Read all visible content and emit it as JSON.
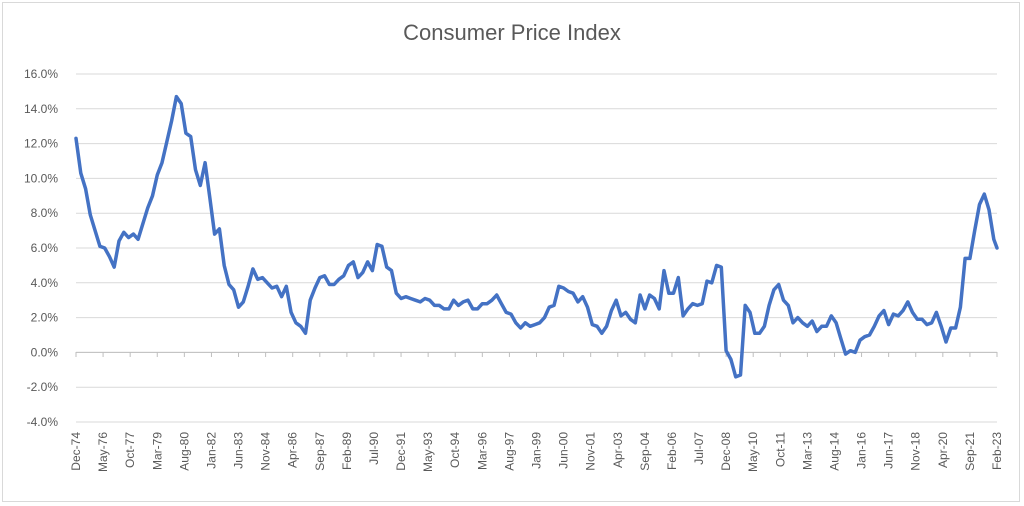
{
  "chart_data": {
    "type": "line",
    "title": "Consumer Price Index",
    "xlabel": "",
    "ylabel": "",
    "ylim": [
      -0.04,
      0.16
    ],
    "y_ticks": [
      -0.04,
      -0.02,
      0.0,
      0.02,
      0.04,
      0.06,
      0.08,
      0.1,
      0.12,
      0.14,
      0.16
    ],
    "y_tick_labels": [
      "-4.0%",
      "-2.0%",
      "0.0%",
      "2.0%",
      "4.0%",
      "6.0%",
      "8.0%",
      "10.0%",
      "12.0%",
      "14.0%",
      "16.0%"
    ],
    "x_range": [
      "1974-12",
      "2023-02"
    ],
    "x_tick_labels": [
      "Dec-74",
      "May-76",
      "Oct-77",
      "Mar-79",
      "Aug-80",
      "Jan-82",
      "Jun-83",
      "Nov-84",
      "Apr-86",
      "Sep-87",
      "Feb-89",
      "Jul-90",
      "Dec-91",
      "May-93",
      "Oct-94",
      "Mar-96",
      "Aug-97",
      "Jan-99",
      "Jun-00",
      "Nov-01",
      "Apr-03",
      "Sep-04",
      "Feb-06",
      "Jul-07",
      "Dec-08",
      "May-10",
      "Oct-11",
      "Mar-13",
      "Aug-14",
      "Jan-16",
      "Jun-17",
      "Nov-18",
      "Apr-20",
      "Sep-21",
      "Feb-23"
    ],
    "grid": true,
    "legend": "none",
    "series": [
      {
        "color": "#4472c4",
        "points": [
          [
            "1974-12",
            0.123
          ],
          [
            "1975-03",
            0.103
          ],
          [
            "1975-06",
            0.094
          ],
          [
            "1975-09",
            0.079
          ],
          [
            "1975-12",
            0.07
          ],
          [
            "1976-03",
            0.061
          ],
          [
            "1976-06",
            0.06
          ],
          [
            "1976-09",
            0.055
          ],
          [
            "1976-12",
            0.049
          ],
          [
            "1977-03",
            0.064
          ],
          [
            "1977-06",
            0.069
          ],
          [
            "1977-09",
            0.066
          ],
          [
            "1977-12",
            0.068
          ],
          [
            "1978-03",
            0.065
          ],
          [
            "1978-06",
            0.074
          ],
          [
            "1978-09",
            0.083
          ],
          [
            "1978-12",
            0.09
          ],
          [
            "1979-03",
            0.102
          ],
          [
            "1979-06",
            0.109
          ],
          [
            "1979-09",
            0.121
          ],
          [
            "1979-12",
            0.133
          ],
          [
            "1980-03",
            0.147
          ],
          [
            "1980-06",
            0.143
          ],
          [
            "1980-09",
            0.126
          ],
          [
            "1980-12",
            0.124
          ],
          [
            "1981-03",
            0.105
          ],
          [
            "1981-06",
            0.096
          ],
          [
            "1981-09",
            0.109
          ],
          [
            "1981-12",
            0.089
          ],
          [
            "1982-03",
            0.068
          ],
          [
            "1982-06",
            0.071
          ],
          [
            "1982-09",
            0.05
          ],
          [
            "1982-12",
            0.039
          ],
          [
            "1983-03",
            0.036
          ],
          [
            "1983-06",
            0.026
          ],
          [
            "1983-09",
            0.029
          ],
          [
            "1983-12",
            0.038
          ],
          [
            "1984-03",
            0.048
          ],
          [
            "1984-06",
            0.042
          ],
          [
            "1984-09",
            0.043
          ],
          [
            "1984-12",
            0.04
          ],
          [
            "1985-03",
            0.037
          ],
          [
            "1985-06",
            0.038
          ],
          [
            "1985-09",
            0.032
          ],
          [
            "1985-12",
            0.038
          ],
          [
            "1986-03",
            0.023
          ],
          [
            "1986-06",
            0.017
          ],
          [
            "1986-09",
            0.015
          ],
          [
            "1986-12",
            0.011
          ],
          [
            "1987-03",
            0.03
          ],
          [
            "1987-06",
            0.037
          ],
          [
            "1987-09",
            0.043
          ],
          [
            "1987-12",
            0.044
          ],
          [
            "1988-03",
            0.039
          ],
          [
            "1988-06",
            0.039
          ],
          [
            "1988-09",
            0.042
          ],
          [
            "1988-12",
            0.044
          ],
          [
            "1989-03",
            0.05
          ],
          [
            "1989-06",
            0.052
          ],
          [
            "1989-09",
            0.043
          ],
          [
            "1989-12",
            0.046
          ],
          [
            "1990-03",
            0.052
          ],
          [
            "1990-06",
            0.047
          ],
          [
            "1990-09",
            0.062
          ],
          [
            "1990-12",
            0.061
          ],
          [
            "1991-03",
            0.049
          ],
          [
            "1991-06",
            0.047
          ],
          [
            "1991-09",
            0.034
          ],
          [
            "1991-12",
            0.031
          ],
          [
            "1992-03",
            0.032
          ],
          [
            "1992-06",
            0.031
          ],
          [
            "1992-09",
            0.03
          ],
          [
            "1992-12",
            0.029
          ],
          [
            "1993-03",
            0.031
          ],
          [
            "1993-06",
            0.03
          ],
          [
            "1993-09",
            0.027
          ],
          [
            "1993-12",
            0.027
          ],
          [
            "1994-03",
            0.025
          ],
          [
            "1994-06",
            0.025
          ],
          [
            "1994-09",
            0.03
          ],
          [
            "1994-12",
            0.027
          ],
          [
            "1995-03",
            0.029
          ],
          [
            "1995-06",
            0.03
          ],
          [
            "1995-09",
            0.025
          ],
          [
            "1995-12",
            0.025
          ],
          [
            "1996-03",
            0.028
          ],
          [
            "1996-06",
            0.028
          ],
          [
            "1996-09",
            0.03
          ],
          [
            "1996-12",
            0.033
          ],
          [
            "1997-03",
            0.028
          ],
          [
            "1997-06",
            0.023
          ],
          [
            "1997-09",
            0.022
          ],
          [
            "1997-12",
            0.017
          ],
          [
            "1998-03",
            0.014
          ],
          [
            "1998-06",
            0.017
          ],
          [
            "1998-09",
            0.015
          ],
          [
            "1998-12",
            0.016
          ],
          [
            "1999-03",
            0.017
          ],
          [
            "1999-06",
            0.02
          ],
          [
            "1999-09",
            0.026
          ],
          [
            "1999-12",
            0.027
          ],
          [
            "2000-03",
            0.038
          ],
          [
            "2000-06",
            0.037
          ],
          [
            "2000-09",
            0.035
          ],
          [
            "2000-12",
            0.034
          ],
          [
            "2001-03",
            0.029
          ],
          [
            "2001-06",
            0.032
          ],
          [
            "2001-09",
            0.026
          ],
          [
            "2001-12",
            0.016
          ],
          [
            "2002-03",
            0.015
          ],
          [
            "2002-06",
            0.011
          ],
          [
            "2002-09",
            0.015
          ],
          [
            "2002-12",
            0.024
          ],
          [
            "2003-03",
            0.03
          ],
          [
            "2003-06",
            0.021
          ],
          [
            "2003-09",
            0.023
          ],
          [
            "2003-12",
            0.019
          ],
          [
            "2004-03",
            0.017
          ],
          [
            "2004-06",
            0.033
          ],
          [
            "2004-09",
            0.025
          ],
          [
            "2004-12",
            0.033
          ],
          [
            "2005-03",
            0.031
          ],
          [
            "2005-06",
            0.025
          ],
          [
            "2005-09",
            0.047
          ],
          [
            "2005-12",
            0.034
          ],
          [
            "2006-03",
            0.034
          ],
          [
            "2006-06",
            0.043
          ],
          [
            "2006-09",
            0.021
          ],
          [
            "2006-12",
            0.025
          ],
          [
            "2007-03",
            0.028
          ],
          [
            "2007-06",
            0.027
          ],
          [
            "2007-09",
            0.028
          ],
          [
            "2007-12",
            0.041
          ],
          [
            "2008-03",
            0.04
          ],
          [
            "2008-06",
            0.05
          ],
          [
            "2008-09",
            0.049
          ],
          [
            "2008-12",
            0.001
          ],
          [
            "2009-03",
            -0.004
          ],
          [
            "2009-06",
            -0.014
          ],
          [
            "2009-09",
            -0.013
          ],
          [
            "2009-12",
            0.027
          ],
          [
            "2010-03",
            0.023
          ],
          [
            "2010-06",
            0.011
          ],
          [
            "2010-09",
            0.011
          ],
          [
            "2010-12",
            0.015
          ],
          [
            "2011-03",
            0.027
          ],
          [
            "2011-06",
            0.036
          ],
          [
            "2011-09",
            0.039
          ],
          [
            "2011-12",
            0.03
          ],
          [
            "2012-03",
            0.027
          ],
          [
            "2012-06",
            0.017
          ],
          [
            "2012-09",
            0.02
          ],
          [
            "2012-12",
            0.017
          ],
          [
            "2013-03",
            0.015
          ],
          [
            "2013-06",
            0.018
          ],
          [
            "2013-09",
            0.012
          ],
          [
            "2013-12",
            0.015
          ],
          [
            "2014-03",
            0.015
          ],
          [
            "2014-06",
            0.021
          ],
          [
            "2014-09",
            0.017
          ],
          [
            "2014-12",
            0.008
          ],
          [
            "2015-03",
            -0.001
          ],
          [
            "2015-06",
            0.001
          ],
          [
            "2015-09",
            0.0
          ],
          [
            "2015-12",
            0.007
          ],
          [
            "2016-03",
            0.009
          ],
          [
            "2016-06",
            0.01
          ],
          [
            "2016-09",
            0.015
          ],
          [
            "2016-12",
            0.021
          ],
          [
            "2017-03",
            0.024
          ],
          [
            "2017-06",
            0.016
          ],
          [
            "2017-09",
            0.022
          ],
          [
            "2017-12",
            0.021
          ],
          [
            "2018-03",
            0.024
          ],
          [
            "2018-06",
            0.029
          ],
          [
            "2018-09",
            0.023
          ],
          [
            "2018-12",
            0.019
          ],
          [
            "2019-03",
            0.019
          ],
          [
            "2019-06",
            0.016
          ],
          [
            "2019-09",
            0.017
          ],
          [
            "2019-12",
            0.023
          ],
          [
            "2020-03",
            0.015
          ],
          [
            "2020-06",
            0.006
          ],
          [
            "2020-09",
            0.014
          ],
          [
            "2020-12",
            0.014
          ],
          [
            "2021-03",
            0.026
          ],
          [
            "2021-06",
            0.054
          ],
          [
            "2021-09",
            0.054
          ],
          [
            "2021-12",
            0.07
          ],
          [
            "2022-03",
            0.085
          ],
          [
            "2022-06",
            0.091
          ],
          [
            "2022-09",
            0.082
          ],
          [
            "2022-12",
            0.065
          ],
          [
            "2023-02",
            0.06
          ]
        ]
      }
    ]
  }
}
